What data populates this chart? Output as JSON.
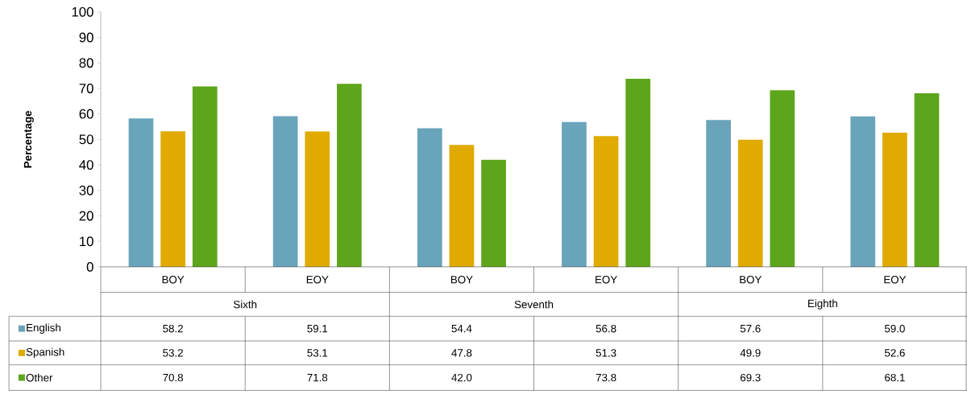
{
  "chart_data": {
    "type": "bar",
    "ylabel": "Percentage",
    "categories": [
      "BOY",
      "EOY",
      "BOY",
      "EOY",
      "BOY",
      "EOY"
    ],
    "annotations": [
      "Sixth",
      "Seventh",
      "Eighth"
    ],
    "ylim": [
      0,
      100
    ],
    "yticks": [
      0,
      10,
      20,
      30,
      40,
      50,
      60,
      70,
      80,
      90,
      100
    ],
    "legend": "bottom",
    "series": [
      {
        "name": "English",
        "color": "#6aa4bb",
        "values": [
          58.2,
          59.1,
          54.4,
          56.8,
          57.6,
          59.0
        ],
        "value_labels": [
          "58.2",
          "59.1",
          "54.4",
          "56.8",
          "57.6",
          "59.0"
        ]
      },
      {
        "name": "Spanish",
        "color": "#e0aa00",
        "values": [
          53.2,
          53.1,
          47.8,
          51.3,
          49.9,
          52.6
        ],
        "value_labels": [
          "53.2",
          "53.1",
          "47.8",
          "51.3",
          "49.9",
          "52.6"
        ]
      },
      {
        "name": "Other",
        "color": "#5da51b",
        "values": [
          70.8,
          71.8,
          42.0,
          73.8,
          69.3,
          68.1
        ],
        "value_labels": [
          "70.8",
          "71.8",
          "42.0",
          "73.8",
          "69.3",
          "68.1"
        ]
      }
    ]
  }
}
